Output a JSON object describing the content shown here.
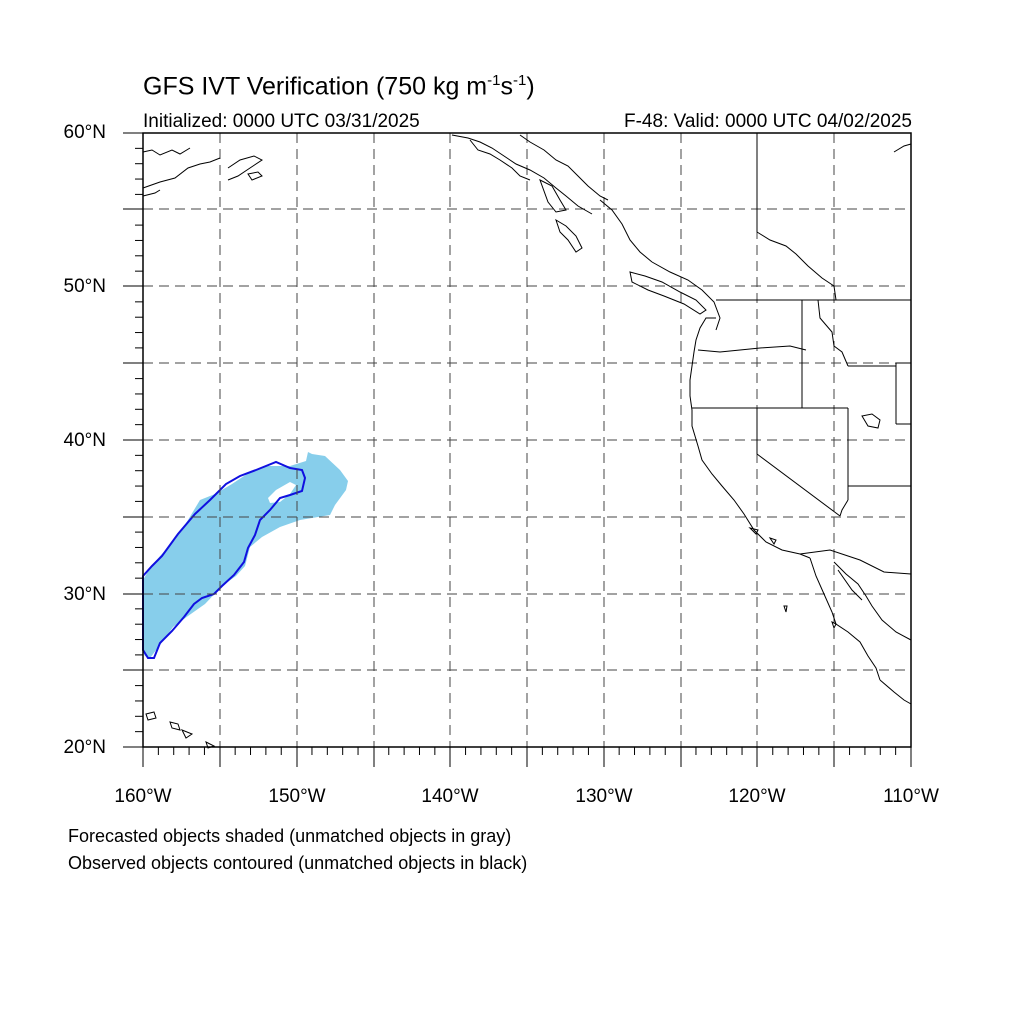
{
  "title": {
    "main": "GFS IVT Verification (750 kg m",
    "sup1": "-1",
    "mid": "s",
    "sup2": "-1",
    "end": ")"
  },
  "init_label": "Initialized: 0000 UTC 03/31/2025",
  "valid_label": "F-48: Valid: 0000 UTC 04/02/2025",
  "lat_labels": [
    "60°N",
    "50°N",
    "40°N",
    "30°N",
    "20°N"
  ],
  "lon_labels": [
    "160°W",
    "150°W",
    "140°W",
    "130°W",
    "120°W",
    "110°W"
  ],
  "footnotes": [
    "Forecasted objects shaded (unmatched objects in gray)",
    "Observed objects contoured (unmatched objects in black)"
  ],
  "colors": {
    "forecast_fill": "#87ceeb",
    "observed_contour": "#1010e0",
    "coastline": "#000000",
    "gridline": "#444444"
  },
  "map_extent": {
    "lon": [
      -160,
      -110
    ],
    "lat": [
      20,
      60
    ]
  }
}
